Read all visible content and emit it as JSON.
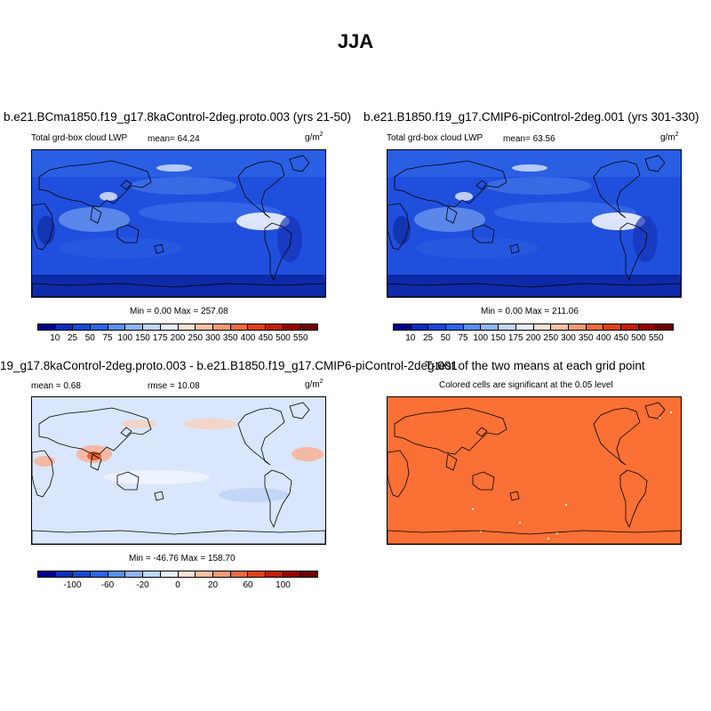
{
  "figure": {
    "title": "JJA"
  },
  "panels": [
    {
      "title": "b.e21.BCma1850.f19_g17.8kaControl-2deg.proto.003 (yrs 21-50)",
      "variable": "Total grd-box cloud LWP",
      "mean": "mean=  64.24",
      "units_base": "g/m",
      "units_exp": "2",
      "minmax": "Min =   0.00 Max = 257.08"
    },
    {
      "title": "b.e21.B1850.f19_g17.CMIP6-piControl-2deg.001 (yrs 301-330)",
      "variable": "Total grd-box cloud LWP",
      "mean": "mean=  63.56",
      "units_base": "g/m",
      "units_exp": "2",
      "minmax": "Min =   0.00 Max = 211.06"
    },
    {
      "title": "19_g17.8kaControl-2deg.proto.003 - b.e21.B1850.f19_g17.CMIP6-piControl-2deg.001",
      "mean": "mean =   0.68",
      "rmse": "rmse =  10.08",
      "units_base": "g/m",
      "units_exp": "2",
      "minmax": "Min = -46.76 Max = 158.70"
    },
    {
      "title": "T-test of the two means at each grid point",
      "subtitle": "Colored cells are significant at the 0.05 level"
    }
  ],
  "colorbars": {
    "absolute": {
      "colors": [
        "#00008c",
        "#0a2fbd",
        "#1549d6",
        "#2c65e8",
        "#5b8ff0",
        "#8fb4f5",
        "#bfd6fa",
        "#e6efff",
        "#fde0d2",
        "#fbbfa3",
        "#f49a73",
        "#eb6b3f",
        "#dd4218",
        "#c21f05",
        "#990000",
        "#6e0000"
      ],
      "labels": [
        "10",
        "25",
        "50",
        "75",
        "100",
        "150",
        "175",
        "200",
        "250",
        "300",
        "350",
        "400",
        "450",
        "500",
        "550"
      ]
    },
    "difference": {
      "colors": [
        "#00008c",
        "#0a2fbd",
        "#1549d6",
        "#2c65e8",
        "#5b8ff0",
        "#8fb4f5",
        "#bfd6fa",
        "#e6efff",
        "#fde0d2",
        "#fbbfa3",
        "#f49a73",
        "#eb6b3f",
        "#dd4218",
        "#c21f05",
        "#990000",
        "#6e0000"
      ],
      "labels": [
        "-100",
        "-60",
        "-20",
        "0",
        "20",
        "60",
        "100"
      ]
    }
  },
  "map_colors": {
    "ocean_base": "#1f4fdc",
    "ocean_dark": "#0d2aa8",
    "land_light": "#5d88ec",
    "diff_base": "#d9e6fb",
    "diff_pos": "#f6b49a",
    "diff_strong": "#e05a30",
    "ttest": "#fb7034"
  }
}
